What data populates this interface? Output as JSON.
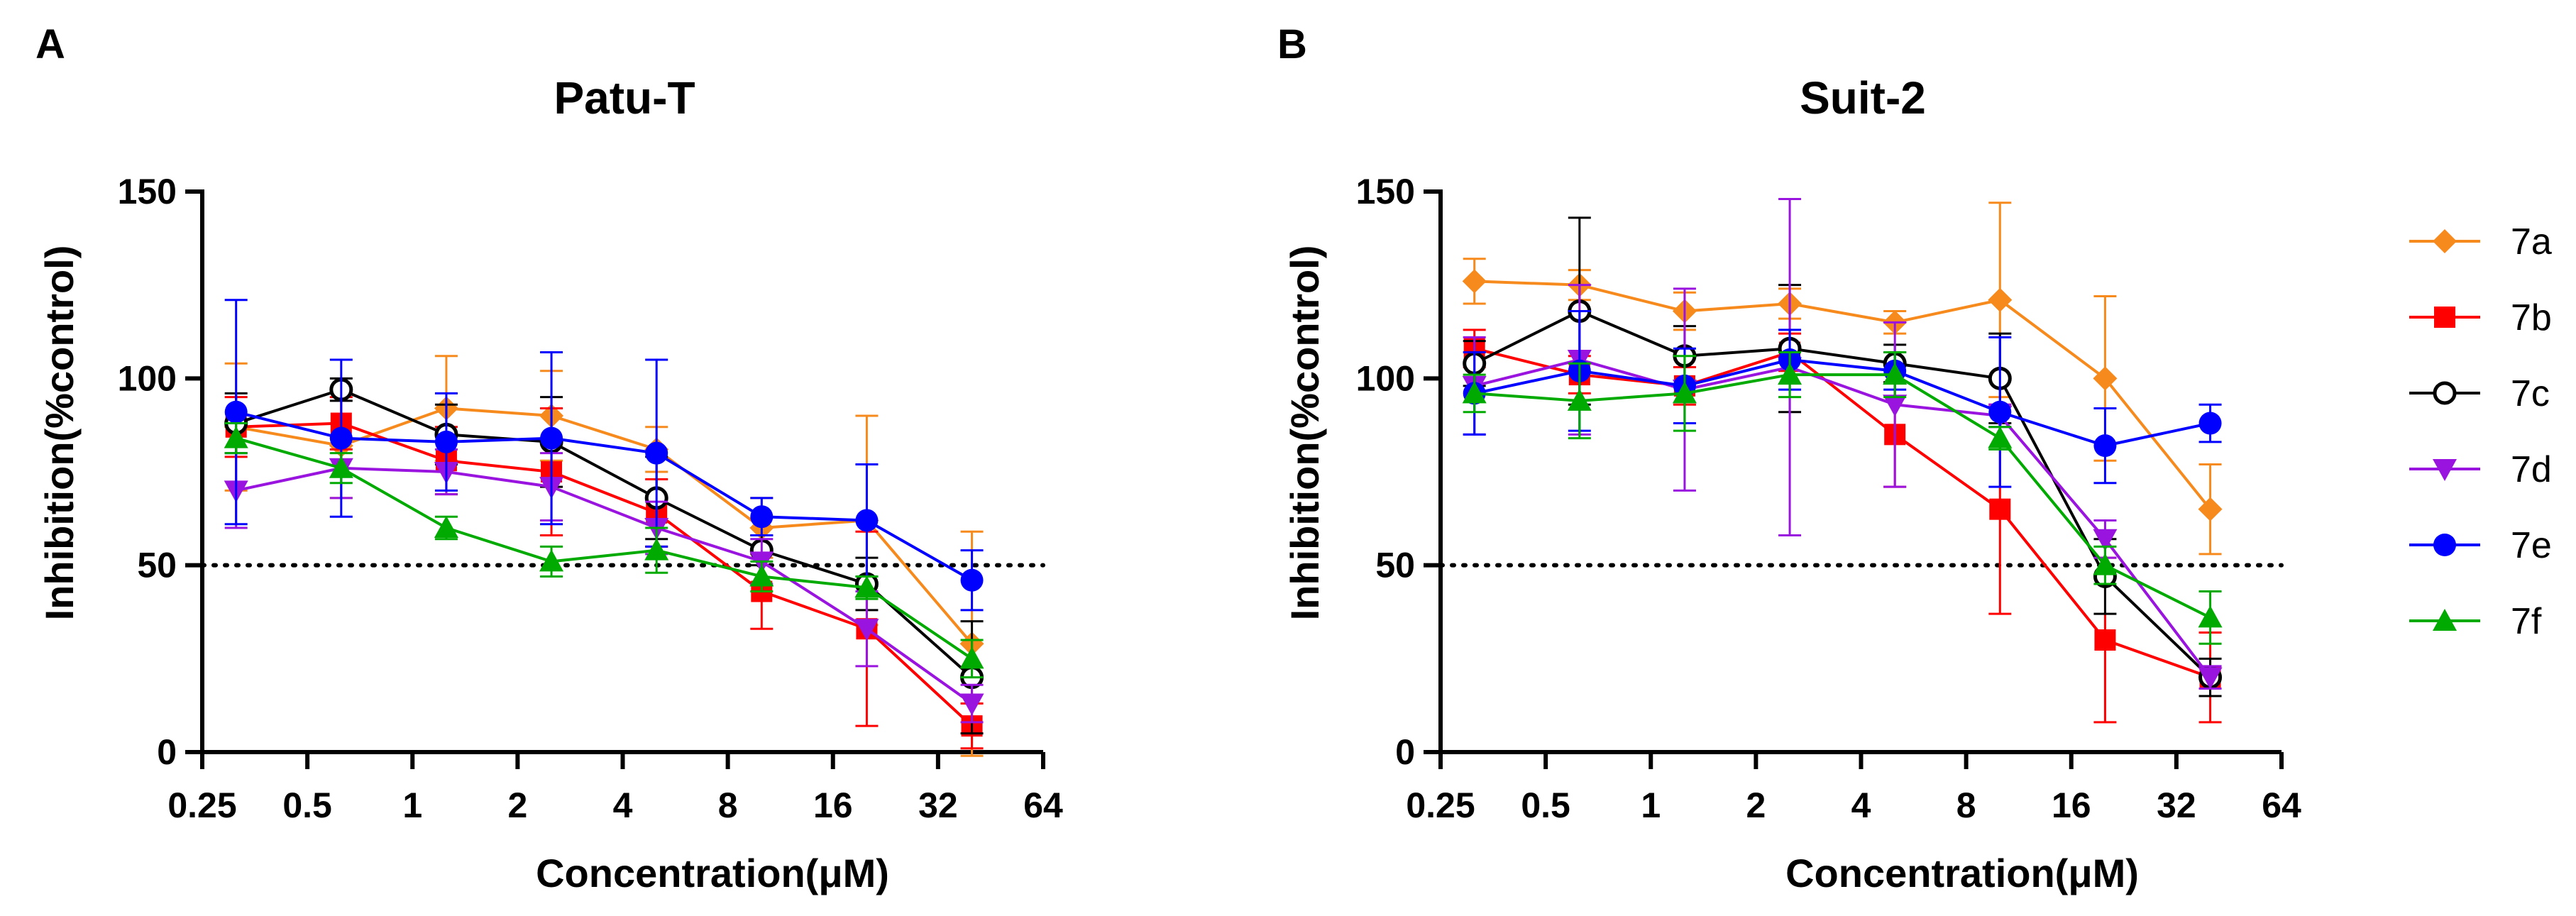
{
  "chart_data": [
    {
      "type": "line",
      "panel": "A",
      "title": "Patu-T",
      "xlabel": "Concentration(μM)",
      "ylabel": "Inhibition(%control)",
      "x_scale": "log2",
      "xlim": [
        0.25,
        64
      ],
      "xticks": [
        0.25,
        0.5,
        1,
        2,
        4,
        8,
        16,
        32,
        64
      ],
      "xtick_labels": [
        "0.25",
        "0.5",
        "1",
        "2",
        "4",
        "8",
        "16",
        "32",
        "64"
      ],
      "ylim": [
        0,
        150
      ],
      "yticks": [
        0,
        50,
        100,
        150
      ],
      "ytick_labels": [
        "0",
        "50",
        "100",
        "150"
      ],
      "reference_line": 50,
      "x": [
        0.3125,
        0.625,
        1.25,
        2.5,
        5,
        10,
        20,
        40
      ],
      "series": [
        {
          "name": "7a",
          "values": [
            87,
            82,
            92,
            90,
            81,
            60,
            62,
            29
          ],
          "errors": [
            17,
            14,
            14,
            12,
            6,
            8,
            28,
            30
          ]
        },
        {
          "name": "7b",
          "values": [
            87,
            88,
            78,
            75,
            64,
            43,
            33,
            7
          ],
          "errors": [
            8,
            7,
            9,
            17,
            9,
            10,
            26,
            6
          ]
        },
        {
          "name": "7c",
          "values": [
            88,
            97,
            85,
            83,
            68,
            54,
            45,
            20
          ],
          "errors": [
            8,
            3,
            8,
            12,
            11,
            4,
            7,
            15
          ]
        },
        {
          "name": "7d",
          "values": [
            70,
            76,
            75,
            71,
            60,
            51,
            33,
            13
          ],
          "errors": [
            10,
            8,
            6,
            9,
            7,
            6,
            10,
            5
          ]
        },
        {
          "name": "7e",
          "values": [
            91,
            84,
            83,
            84,
            80,
            63,
            62,
            46
          ],
          "errors": [
            30,
            21,
            13,
            23,
            25,
            5,
            15,
            8
          ]
        },
        {
          "name": "7f",
          "values": [
            84,
            76,
            60,
            51,
            54,
            47,
            44,
            25
          ],
          "errors": [
            4,
            4,
            3,
            4,
            6,
            4,
            3,
            5
          ]
        }
      ]
    },
    {
      "type": "line",
      "panel": "B",
      "title": "Suit-2",
      "xlabel": "Concentration(μM)",
      "ylabel": "Inhibition(%control)",
      "x_scale": "log2",
      "xlim": [
        0.25,
        64
      ],
      "xticks": [
        0.25,
        0.5,
        1,
        2,
        4,
        8,
        16,
        32,
        64
      ],
      "xtick_labels": [
        "0.25",
        "0.5",
        "1",
        "2",
        "4",
        "8",
        "16",
        "32",
        "64"
      ],
      "ylim": [
        0,
        150
      ],
      "yticks": [
        0,
        50,
        100,
        150
      ],
      "ytick_labels": [
        "0",
        "50",
        "100",
        "150"
      ],
      "reference_line": 50,
      "x": [
        0.3125,
        0.625,
        1.25,
        2.5,
        5,
        10,
        20,
        40
      ],
      "series": [
        {
          "name": "7a",
          "values": [
            126,
            125,
            118,
            120,
            115,
            121,
            100,
            65
          ],
          "errors": [
            6,
            4,
            5,
            4,
            3,
            26,
            22,
            12
          ]
        },
        {
          "name": "7b",
          "values": [
            108,
            101,
            98,
            107,
            85,
            65,
            30,
            20
          ],
          "errors": [
            5,
            5,
            5,
            5,
            14,
            28,
            22,
            12
          ]
        },
        {
          "name": "7c",
          "values": [
            104,
            118,
            106,
            108,
            104,
            100,
            47,
            20
          ],
          "errors": [
            6,
            25,
            8,
            17,
            5,
            12,
            10,
            5
          ]
        },
        {
          "name": "7d",
          "values": [
            98,
            105,
            97,
            103,
            93,
            90,
            57,
            20
          ],
          "errors": [
            13,
            20,
            27,
            45,
            22,
            3,
            5,
            3
          ]
        },
        {
          "name": "7e",
          "values": [
            96,
            102,
            98,
            105,
            102,
            91,
            82,
            88
          ],
          "errors": [
            11,
            16,
            10,
            8,
            5,
            20,
            10,
            5
          ]
        },
        {
          "name": "7f",
          "values": [
            96,
            94,
            96,
            101,
            101,
            84,
            50,
            36
          ],
          "errors": [
            5,
            10,
            10,
            6,
            6,
            3,
            5,
            7
          ]
        }
      ]
    }
  ],
  "legend": [
    {
      "name": "7a",
      "color": "#F78A1D",
      "marker": "diamond"
    },
    {
      "name": "7b",
      "color": "#FF0000",
      "marker": "square"
    },
    {
      "name": "7c",
      "color": "#000000",
      "marker": "open-circle"
    },
    {
      "name": "7d",
      "color": "#9A14DF",
      "marker": "triangle-down"
    },
    {
      "name": "7e",
      "color": "#0000FF",
      "marker": "circle"
    },
    {
      "name": "7f",
      "color": "#00AA00",
      "marker": "triangle-up"
    }
  ]
}
